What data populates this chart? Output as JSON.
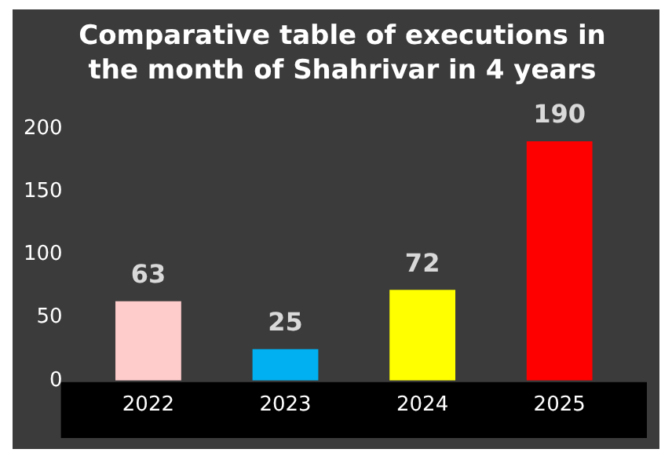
{
  "chart_data": {
    "type": "bar",
    "title": "Comparative table of executions in the month of Shahrivar in 4 years",
    "categories": [
      "2022",
      "2023",
      "2024",
      "2025"
    ],
    "values": [
      63,
      25,
      72,
      190
    ],
    "colors": [
      "#ffcccc",
      "#00b0f0",
      "#ffff00",
      "#ff0000"
    ],
    "ylim": [
      0,
      200
    ],
    "yticks": [
      0,
      50,
      100,
      150,
      200
    ],
    "data_labels": true,
    "grid": false,
    "legend": false
  }
}
